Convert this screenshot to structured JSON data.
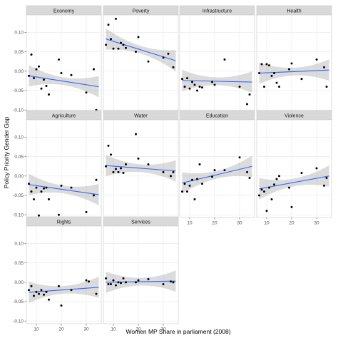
{
  "chart_data": {
    "type": "scatter",
    "title": "",
    "xlabel": "Women MP Share in parliament (2008)",
    "ylabel": "Policy Priority Gender Gap",
    "xlim": [
      6,
      36
    ],
    "ylim": [
      -0.107,
      0.145
    ],
    "x_ticks": [
      10,
      20,
      30
    ],
    "y_ticks": [
      -0.1,
      -0.05,
      0.0,
      0.05,
      0.1
    ],
    "x_tick_labels": [
      "10",
      "20",
      "30"
    ],
    "y_tick_labels": [
      "-0.10",
      "-0.05",
      "0.00",
      "0.05",
      "0.10"
    ],
    "grid": true,
    "smoother": "linear fit with shaded confidence band",
    "colors": {
      "panel_background": "#ffffff",
      "grid": "#ebebeb",
      "panel_border": "#c8c8c8",
      "strip_background": "#d9d9d9",
      "points": "#000000",
      "fit_line": "#3366ff",
      "confidence_band": "#999999"
    },
    "panels": [
      {
        "label": "Economy",
        "fit": [
          [
            7,
            -0.012
          ],
          [
            35,
            -0.04
          ]
        ],
        "points": [
          [
            7,
            -0.012
          ],
          [
            8,
            0.043
          ],
          [
            9,
            -0.018
          ],
          [
            10,
            0.005
          ],
          [
            11,
            0.012
          ],
          [
            12,
            -0.045
          ],
          [
            13,
            -0.022
          ],
          [
            14,
            -0.038
          ],
          [
            15,
            -0.06
          ],
          [
            19,
            0.03
          ],
          [
            20,
            -0.005
          ],
          [
            24,
            -0.01
          ],
          [
            30,
            -0.055
          ],
          [
            33,
            0.005
          ],
          [
            34,
            -0.1
          ]
        ]
      },
      {
        "label": "Poverty",
        "fit": [
          [
            7,
            0.083
          ],
          [
            35,
            0.027
          ]
        ],
        "points": [
          [
            7,
            0.068
          ],
          [
            8,
            0.12
          ],
          [
            9,
            0.083
          ],
          [
            10,
            0.058
          ],
          [
            11,
            0.135
          ],
          [
            12,
            0.058
          ],
          [
            13,
            0.073
          ],
          [
            14,
            0.068
          ],
          [
            15,
            0.06
          ],
          [
            19,
            0.05
          ],
          [
            20,
            0.088
          ],
          [
            24,
            0.025
          ],
          [
            30,
            0.035
          ],
          [
            32,
            0.045
          ],
          [
            34,
            0.01
          ]
        ]
      },
      {
        "label": "Infrastructure",
        "fit": [
          [
            7,
            -0.024
          ],
          [
            35,
            -0.028
          ]
        ],
        "points": [
          [
            7,
            -0.02
          ],
          [
            8,
            -0.04
          ],
          [
            9,
            -0.018
          ],
          [
            10,
            -0.045
          ],
          [
            11,
            -0.028
          ],
          [
            12,
            -0.035
          ],
          [
            13,
            -0.05
          ],
          [
            14,
            -0.04
          ],
          [
            15,
            -0.042
          ],
          [
            19,
            -0.028
          ],
          [
            20,
            -0.035
          ],
          [
            24,
            0.03
          ],
          [
            30,
            -0.04
          ],
          [
            33,
            -0.085
          ],
          [
            34,
            -0.06
          ]
        ]
      },
      {
        "label": "Health",
        "fit": [
          [
            7,
            -0.005
          ],
          [
            35,
            0.003
          ]
        ],
        "points": [
          [
            7,
            -0.005
          ],
          [
            8,
            0.018
          ],
          [
            9,
            -0.04
          ],
          [
            10,
            0.018
          ],
          [
            11,
            0.015
          ],
          [
            12,
            -0.012
          ],
          [
            13,
            -0.005
          ],
          [
            14,
            -0.03
          ],
          [
            15,
            -0.04
          ],
          [
            19,
            0.005
          ],
          [
            20,
            0.02
          ],
          [
            24,
            -0.02
          ],
          [
            30,
            0.03
          ],
          [
            33,
            0.01
          ],
          [
            34,
            -0.04
          ]
        ]
      },
      {
        "label": "Agriculture",
        "fit": [
          [
            7,
            -0.022
          ],
          [
            35,
            -0.048
          ]
        ],
        "points": [
          [
            7,
            -0.02
          ],
          [
            8,
            -0.04
          ],
          [
            9,
            -0.06
          ],
          [
            10,
            -0.03
          ],
          [
            11,
            -0.102
          ],
          [
            12,
            -0.04
          ],
          [
            13,
            -0.032
          ],
          [
            14,
            -0.03
          ],
          [
            15,
            -0.06
          ],
          [
            19,
            -0.1
          ],
          [
            20,
            -0.025
          ],
          [
            24,
            -0.03
          ],
          [
            30,
            -0.093
          ],
          [
            33,
            -0.05
          ],
          [
            34,
            -0.01
          ]
        ]
      },
      {
        "label": "Water",
        "fit": [
          [
            7,
            0.027
          ],
          [
            35,
            0.013
          ]
        ],
        "points": [
          [
            7,
            0.025
          ],
          [
            8,
            0.078
          ],
          [
            9,
            0.055
          ],
          [
            10,
            0.01
          ],
          [
            11,
            0.018
          ],
          [
            12,
            0.01
          ],
          [
            13,
            0.02
          ],
          [
            14,
            0.008
          ],
          [
            15,
            0.03
          ],
          [
            19,
            0.108
          ],
          [
            20,
            0.045
          ],
          [
            24,
            0.03
          ],
          [
            30,
            0.01
          ],
          [
            33,
            0.0
          ],
          [
            34,
            0.01
          ]
        ]
      },
      {
        "label": "Education",
        "fit": [
          [
            7,
            -0.018
          ],
          [
            35,
            0.025
          ]
        ],
        "points": [
          [
            7,
            -0.04
          ],
          [
            8,
            -0.02
          ],
          [
            9,
            -0.04
          ],
          [
            10,
            -0.025
          ],
          [
            11,
            -0.01
          ],
          [
            12,
            -0.06
          ],
          [
            13,
            -0.008
          ],
          [
            14,
            0.03
          ],
          [
            15,
            -0.02
          ],
          [
            19,
            -0.002
          ],
          [
            20,
            0.015
          ],
          [
            24,
            0.015
          ],
          [
            30,
            0.048
          ],
          [
            33,
            0.01
          ],
          [
            34,
            -0.005
          ]
        ]
      },
      {
        "label": "Violence",
        "fit": [
          [
            7,
            -0.033
          ],
          [
            35,
            0.0
          ]
        ],
        "points": [
          [
            7,
            -0.05
          ],
          [
            8,
            -0.035
          ],
          [
            9,
            -0.04
          ],
          [
            10,
            -0.09
          ],
          [
            11,
            -0.03
          ],
          [
            12,
            -0.06
          ],
          [
            13,
            -0.022
          ],
          [
            14,
            -0.008
          ],
          [
            15,
            0.0
          ],
          [
            19,
            -0.03
          ],
          [
            20,
            -0.08
          ],
          [
            24,
            0.008
          ],
          [
            30,
            0.02
          ],
          [
            33,
            -0.025
          ],
          [
            34,
            -0.005
          ]
        ]
      },
      {
        "label": "Rights",
        "fit": [
          [
            7,
            -0.026
          ],
          [
            35,
            -0.013
          ]
        ],
        "points": [
          [
            7,
            -0.02
          ],
          [
            8,
            -0.01
          ],
          [
            9,
            -0.035
          ],
          [
            10,
            -0.025
          ],
          [
            11,
            -0.03
          ],
          [
            12,
            -0.02
          ],
          [
            13,
            -0.032
          ],
          [
            14,
            -0.025
          ],
          [
            15,
            -0.045
          ],
          [
            19,
            -0.01
          ],
          [
            20,
            -0.06
          ],
          [
            24,
            -0.02
          ],
          [
            30,
            0.005
          ],
          [
            31,
            0.002
          ],
          [
            34,
            -0.03
          ]
        ]
      },
      {
        "label": "Services",
        "fit": [
          [
            7,
            0.0
          ],
          [
            35,
            0.003
          ]
        ],
        "points": [
          [
            7,
            0.01
          ],
          [
            8,
            -0.005
          ],
          [
            9,
            -0.005
          ],
          [
            10,
            0.005
          ],
          [
            11,
            -0.008
          ],
          [
            12,
            0.0
          ],
          [
            13,
            -0.002
          ],
          [
            14,
            0.01
          ],
          [
            15,
            0.0
          ],
          [
            19,
            0.0
          ],
          [
            20,
            0.005
          ],
          [
            24,
            0.008
          ],
          [
            30,
            -0.005
          ],
          [
            33,
            0.002
          ],
          [
            34,
            0.0
          ]
        ]
      }
    ]
  }
}
